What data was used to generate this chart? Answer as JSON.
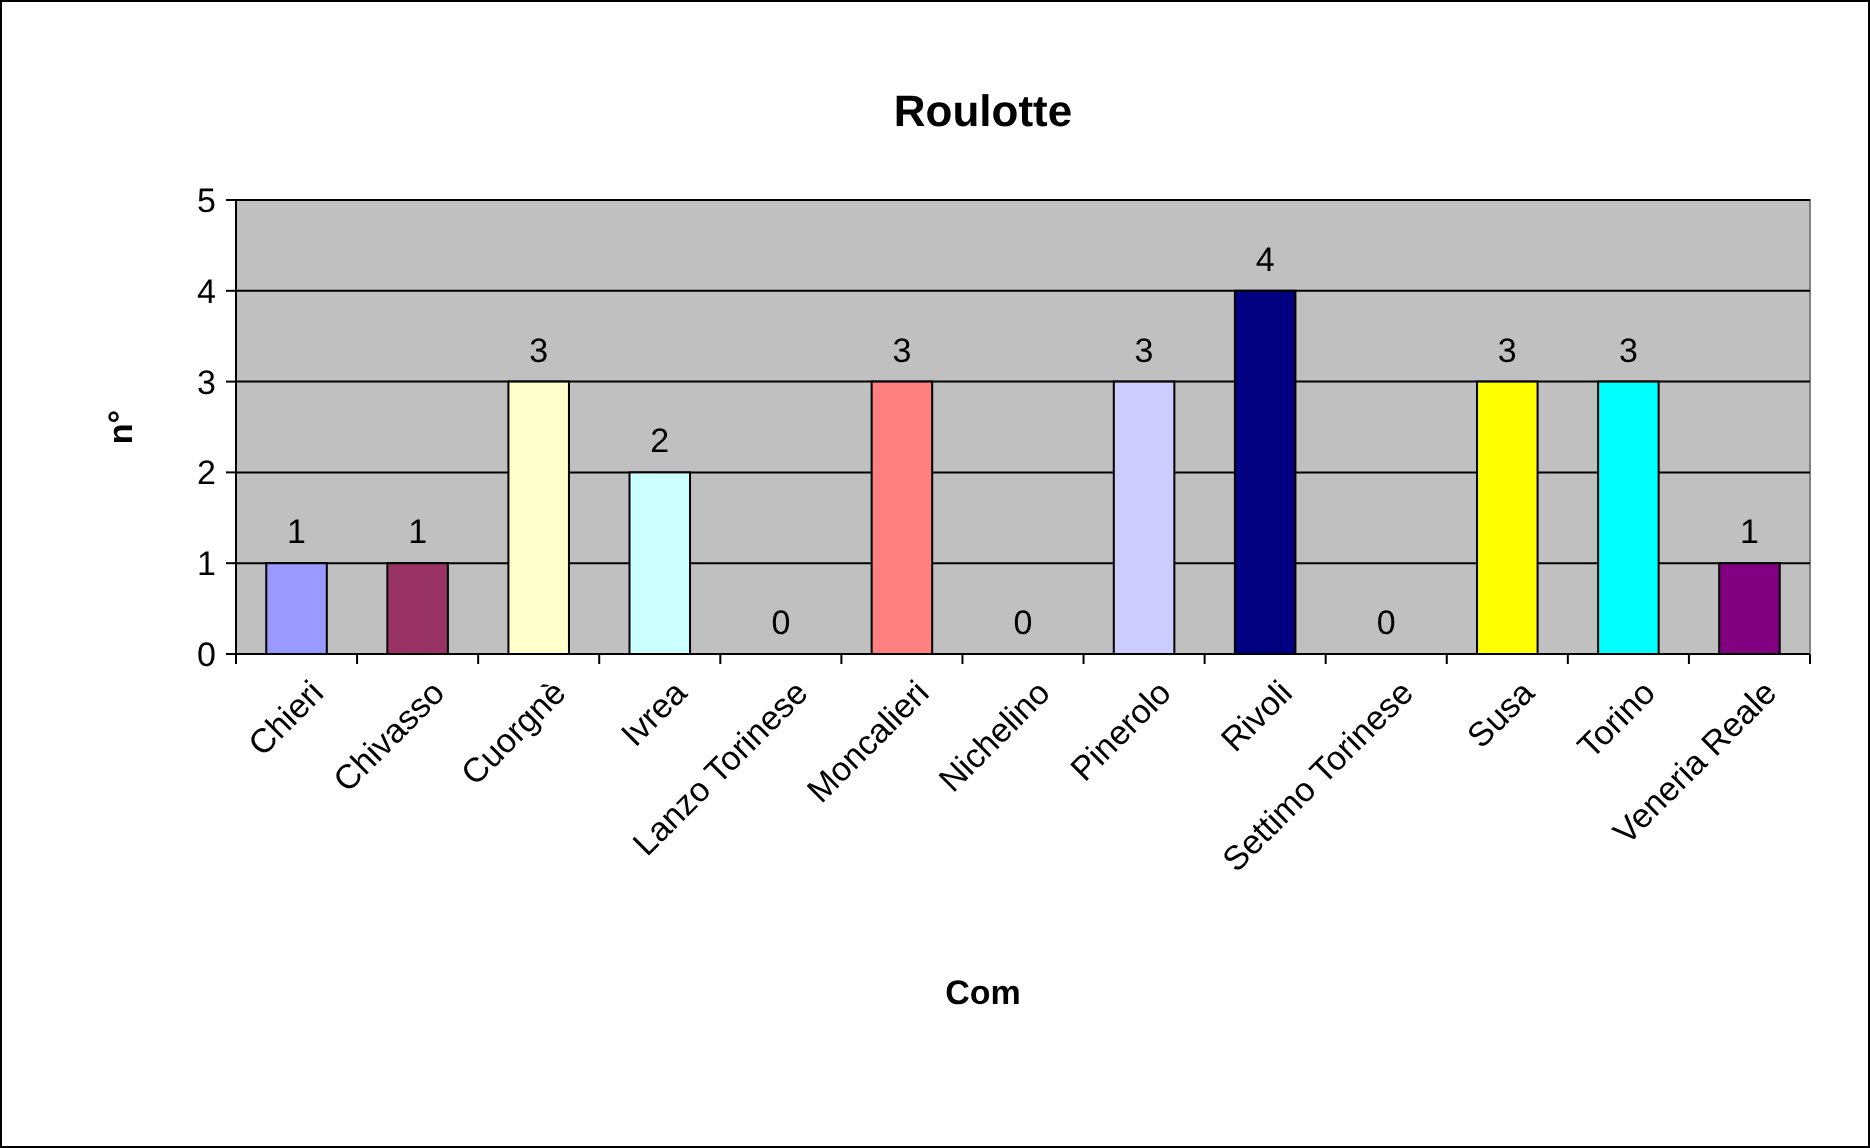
{
  "chart_data": {
    "type": "bar",
    "title": "Roulotte",
    "xlabel": "Com",
    "ylabel": "n°",
    "categories": [
      "Chieri",
      "Chivasso",
      "Cuorgnè",
      "Ivrea",
      "Lanzo Torinese",
      "Moncalieri",
      "Nichelino",
      "Pinerolo",
      "Rivoli",
      "Settimo Torinese",
      "Susa",
      "Torino",
      "Veneria Reale"
    ],
    "values": [
      1,
      1,
      3,
      2,
      0,
      3,
      0,
      3,
      4,
      0,
      3,
      3,
      1
    ],
    "colors": [
      "#9999ff",
      "#993366",
      "#ffffcc",
      "#ccffff",
      "#660066",
      "#ff8080",
      "#0066cc",
      "#ccccff",
      "#000080",
      "#ff00ff",
      "#ffff00",
      "#00ffff",
      "#800080"
    ],
    "ylim": [
      0,
      5
    ],
    "yticks": [
      0,
      1,
      2,
      3,
      4,
      5
    ],
    "grid": "y",
    "data_labels": true
  }
}
